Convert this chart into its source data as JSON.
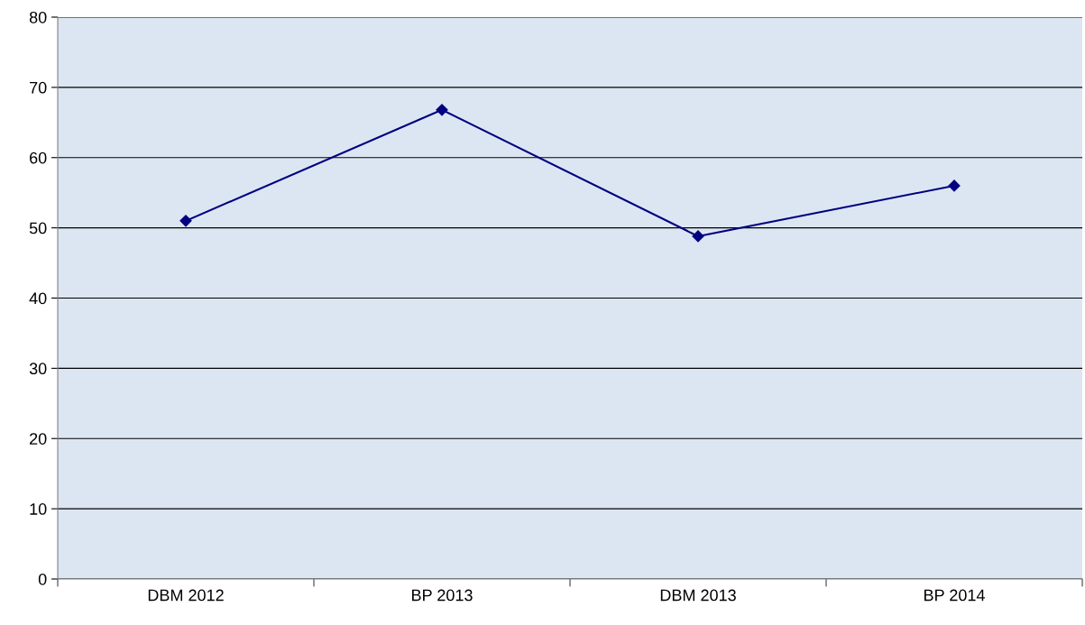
{
  "chart_data": {
    "type": "line",
    "categories": [
      "DBM 2012",
      "BP 2013",
      "DBM 2013",
      "BP 2014"
    ],
    "series": [
      {
        "color": "#000080",
        "values": [
          51,
          66.8,
          48.8,
          56
        ]
      }
    ],
    "ylim": [
      0,
      80
    ],
    "yticks": [
      0,
      10,
      20,
      30,
      40,
      50,
      60,
      70,
      80
    ],
    "grid": "y",
    "marker": "diamond",
    "line_style": "solid",
    "legend": false
  }
}
